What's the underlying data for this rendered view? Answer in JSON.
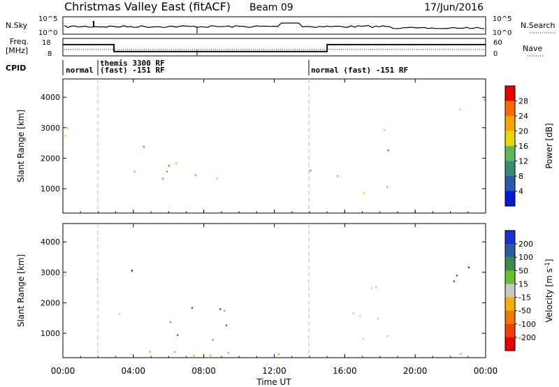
{
  "header": {
    "title": "Christmas Valley East (fitACF)",
    "beam": "Beam 09",
    "date": "17/Jun/2016"
  },
  "colors": {
    "axis": "#000000",
    "data_gray": "#c8c8c8"
  },
  "nsky_panel": {
    "left_label": "N.Sky",
    "right_label": "N.Search",
    "left_top_tick": "10^5",
    "left_bottom_tick": "10^0",
    "right_top_tick": "10^5",
    "right_bottom_tick": "10^0"
  },
  "freq_panel": {
    "left_label_line1": "Freq.",
    "left_label_line2": "[MHz]",
    "right_label": "Nave",
    "left_top_tick": "18",
    "left_bottom_tick": "8",
    "right_top_tick": "60",
    "right_bottom_tick": "0",
    "freq_profile": [
      [
        0,
        14.5
      ],
      [
        2.9,
        14.5
      ],
      [
        2.9,
        10.5
      ],
      [
        15.0,
        10.5
      ],
      [
        15.0,
        14.5
      ],
      [
        24,
        14.5
      ]
    ]
  },
  "cpid_row": {
    "label": "CPID",
    "segments": [
      {
        "text": "normal",
        "start": 0.1
      },
      {
        "text": "themis 3300 RF",
        "start": 2.0
      },
      {
        "text": "(fast) -151 RF",
        "start": 2.0
      },
      {
        "text": "normal (fast) -151 RF",
        "start": 14.0
      }
    ]
  },
  "chart_data": [
    {
      "type": "heatmap",
      "name": "power",
      "ylabel": "Slant Range [km]",
      "yticks": [
        1000,
        2000,
        3000,
        4000
      ],
      "ylim": [
        200,
        4600
      ],
      "xlim": [
        0,
        24
      ],
      "colorbar_label": "Power [dB]",
      "colorbar_ticks": [
        4,
        8,
        12,
        16,
        20,
        24,
        28
      ],
      "colorbar_colors": [
        "#0018d8",
        "#2a5caa",
        "#3a8c70",
        "#5cb85c",
        "#e8d800",
        "#f5a500",
        "#ff6a00",
        "#e80000"
      ],
      "approx_echo_regions": [
        {
          "t0": 0.1,
          "t1": 2.8,
          "r0": 2500,
          "r1": 3100,
          "db": 18
        },
        {
          "t0": 3.0,
          "t1": 5.0,
          "r0": 1400,
          "r1": 1800,
          "db": 22
        },
        {
          "t0": 4.3,
          "t1": 5.2,
          "r0": 2300,
          "r1": 2800,
          "db": 24
        },
        {
          "t0": 5.0,
          "t1": 9.5,
          "r0": 900,
          "r1": 2100,
          "db": 24
        },
        {
          "t0": 14.0,
          "t1": 15.5,
          "r0": 1500,
          "r1": 1800,
          "db": 10
        },
        {
          "t0": 15.5,
          "t1": 18.5,
          "r0": 800,
          "r1": 1700,
          "db": 18
        },
        {
          "t0": 17.0,
          "t1": 18.5,
          "r0": 2000,
          "r1": 3000,
          "db": 14
        },
        {
          "t0": 22.0,
          "t1": 24.0,
          "r0": 2700,
          "r1": 4200,
          "db": 24
        }
      ]
    },
    {
      "type": "heatmap",
      "name": "velocity",
      "ylabel": "Slant Range [km]",
      "yticks": [
        1000,
        2000,
        3000,
        4000
      ],
      "ylim": [
        200,
        4600
      ],
      "xlim": [
        0,
        24
      ],
      "colorbar_label": "Velocity [m s^-1]",
      "colorbar_ticks": [
        200,
        100,
        50,
        15,
        -15,
        -50,
        -100,
        -200
      ],
      "colorbar_colors": [
        "#1a2fd0",
        "#2e5ca0",
        "#3a8c48",
        "#68c030",
        "#c8c8c8",
        "#f0b000",
        "#f07800",
        "#f04000",
        "#e80000"
      ],
      "approx_echo_regions": [
        {
          "t0": 0.1,
          "t1": 2.8,
          "r0": 2500,
          "r1": 3100,
          "v": 0
        },
        {
          "t0": 3.0,
          "t1": 5.0,
          "r0": 1400,
          "r1": 1800,
          "v": 0
        },
        {
          "t0": 3.8,
          "t1": 5.0,
          "r0": 2300,
          "r1": 3200,
          "v": 250
        },
        {
          "t0": 5.0,
          "t1": 9.5,
          "r0": 800,
          "r1": 1800,
          "v": 40
        },
        {
          "t0": 6.5,
          "t1": 9.0,
          "r0": 1600,
          "r1": 2200,
          "v": 150
        },
        {
          "t0": 14.0,
          "t1": 18.5,
          "r0": 800,
          "r1": 1800,
          "v": 0
        },
        {
          "t0": 17.0,
          "t1": 18.5,
          "r0": 2000,
          "r1": 3000,
          "v": 0
        },
        {
          "t0": 22.0,
          "t1": 24.0,
          "r0": 2700,
          "r1": 4200,
          "v": 200
        },
        {
          "t0": 0,
          "t1": 24,
          "r0": 200,
          "r1": 500,
          "v": -20
        }
      ]
    }
  ],
  "xaxis": {
    "label": "Time UT",
    "xlim": [
      0,
      24
    ],
    "ticks": [
      0,
      4,
      8,
      12,
      16,
      20,
      24
    ],
    "tick_labels": [
      "00:00",
      "04:00",
      "08:00",
      "12:00",
      "16:00",
      "20:00",
      "00:00"
    ]
  }
}
